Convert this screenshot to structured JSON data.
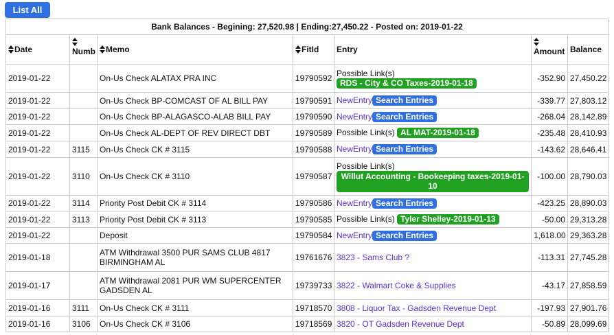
{
  "toolbar": {
    "list_all_label": "List All"
  },
  "caption": "Bank Balances - Begining: 27,520.98 | Ending:27,450.22 - Posted on: 2019-01-22",
  "columns": {
    "date": "Date",
    "numb": "Numb",
    "memo": "Memo",
    "fitid": "FitId",
    "entry": "Entry",
    "amount": "Amount",
    "balance": "Balance"
  },
  "icons": {
    "sort": "sort-icon"
  },
  "colors": {
    "accent_blue": "#2f6fe0",
    "link_green": "#21a121",
    "link_purple": "#5a2fd6"
  },
  "rows": [
    {
      "date": "2019-01-22",
      "numb": "",
      "memo": "On-Us Check ALATAX PRA INC",
      "fitid": "19790592",
      "entry_prefix": "Possible Link(s)",
      "entry_link": "RDS - City & CO Taxes-2019-01-18",
      "amount": "-352.90",
      "balance": "27,450.22"
    },
    {
      "date": "2019-01-22",
      "numb": "",
      "memo": "On-Us Check BP-COMCAST OF AL BILL PAY",
      "fitid": "19790591",
      "entry_new": "NewEntry",
      "entry_search": "Search Entries",
      "amount": "-339.77",
      "balance": "27,803.12"
    },
    {
      "date": "2019-01-22",
      "numb": "",
      "memo": "On-Us Check BP-ALAGASCO-ALAB BILL PAY",
      "fitid": "19790590",
      "entry_new": "NewEntry",
      "entry_search": "Search Entries",
      "amount": "-268.04",
      "balance": "28,142.89"
    },
    {
      "date": "2019-01-22",
      "numb": "",
      "memo": "On-Us Check AL-DEPT OF REV DIRECT DBT",
      "fitid": "19790589",
      "entry_prefix": "Possible Link(s)",
      "entry_link": "AL MAT-2019-01-18",
      "amount": "-235.48",
      "balance": "28,410.93"
    },
    {
      "date": "2019-01-22",
      "numb": "3115",
      "memo": "On-Us Check CK # 3115",
      "fitid": "19790588",
      "entry_new": "NewEntry",
      "entry_search": "Search Entries",
      "amount": "-143.62",
      "balance": "28,646.41"
    },
    {
      "date": "2019-01-22",
      "numb": "3110",
      "memo": "On-Us Check CK # 3110",
      "fitid": "19790587",
      "entry_prefix": "Possible Link(s)",
      "entry_link": "Willut Accounting - Bookeeping taxes-2019-01-10",
      "amount": "-100.00",
      "balance": "28,790.03"
    },
    {
      "date": "2019-01-22",
      "numb": "3114",
      "memo": "Priority Post Debit CK # 3114",
      "fitid": "19790586",
      "entry_new": "NewEntry",
      "entry_search": "Search Entries",
      "amount": "-423.25",
      "balance": "28,890.03"
    },
    {
      "date": "2019-01-22",
      "numb": "3113",
      "memo": "Priority Post Debit CK # 3113",
      "fitid": "19790585",
      "entry_prefix": "Possible Link(s)",
      "entry_link": "Tyler Shelley-2019-01-13",
      "amount": "-50.00",
      "balance": "29,313.28"
    },
    {
      "date": "2019-01-22",
      "numb": "",
      "memo": "Deposit",
      "fitid": "19790584",
      "entry_new": "NewEntry",
      "entry_search": "Search Entries",
      "amount": "1,618.00",
      "balance": "29,363.28"
    },
    {
      "date": "2019-01-18",
      "numb": "",
      "memo": "ATM Withdrawal 3500 PUR SAMS CLUB 4817 BIRMINGHAM AL",
      "fitid": "19761676",
      "entry_text": "3823 - Sams Club ?",
      "amount": "-113.31",
      "balance": "27,745.28"
    },
    {
      "date": "2019-01-17",
      "numb": "",
      "memo": "ATM Withdrawal 2081 PUR WM SUPERCENTER GADSDEN AL",
      "fitid": "19739733",
      "entry_text": "3822 - Walmart Coke & Supplies",
      "amount": "-43.17",
      "balance": "27,858.59"
    },
    {
      "date": "2019-01-16",
      "numb": "3111",
      "memo": "On-Us Check CK # 3111",
      "fitid": "19718570",
      "entry_text": "3808 - Liquor Tax - Gadsden Revenue Dept",
      "amount": "-197.93",
      "balance": "27,901.76"
    },
    {
      "date": "2019-01-16",
      "numb": "3106",
      "memo": "On-Us Check CK # 3106",
      "fitid": "19718569",
      "entry_text": "3820 - OT Gadsden Revenue Dept",
      "amount": "-50.89",
      "balance": "28,099.69"
    }
  ]
}
